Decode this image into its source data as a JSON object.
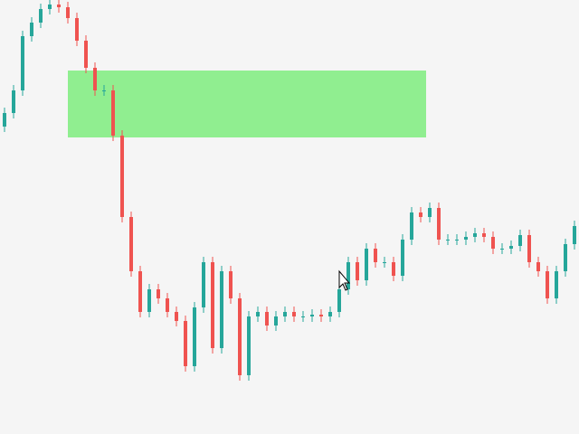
{
  "chart_data": {
    "type": "candlestick",
    "ylim": [
      0,
      480
    ],
    "up_color": "#26a69a",
    "down_color": "#ef5350",
    "zone": [
      328,
      402
    ],
    "zone_color": "#90ee90",
    "open": [
      340,
      355,
      380,
      440,
      455,
      470,
      475,
      472,
      460,
      435,
      405,
      380,
      380,
      330,
      240,
      180,
      135,
      160,
      150,
      135,
      125,
      75,
      140,
      190,
      95,
      180,
      150,
      65,
      130,
      135,
      120,
      130,
      135,
      130,
      130,
      132,
      130,
      135,
      160,
      190,
      170,
      205,
      190,
      190,
      175,
      215,
      245,
      240,
      250,
      215,
      215,
      215,
      218,
      222,
      218,
      205,
      205,
      208,
      220,
      190,
      180,
      150,
      180,
      210
    ],
    "high": [
      361,
      386,
      446,
      461,
      476,
      481,
      481,
      478,
      466,
      441,
      411,
      386,
      386,
      336,
      246,
      186,
      166,
      166,
      156,
      141,
      131,
      146,
      196,
      196,
      186,
      186,
      156,
      136,
      141,
      141,
      136,
      141,
      141,
      136,
      138,
      138,
      141,
      166,
      196,
      196,
      211,
      211,
      196,
      196,
      221,
      251,
      251,
      256,
      256,
      221,
      221,
      224,
      228,
      228,
      224,
      211,
      214,
      226,
      226,
      196,
      186,
      186,
      216,
      236
    ],
    "low": [
      334,
      349,
      374,
      434,
      449,
      464,
      466,
      454,
      429,
      399,
      374,
      374,
      324,
      234,
      174,
      129,
      129,
      144,
      129,
      119,
      69,
      69,
      134,
      89,
      89,
      144,
      59,
      59,
      124,
      114,
      114,
      124,
      124,
      124,
      124,
      124,
      124,
      129,
      154,
      164,
      164,
      184,
      184,
      169,
      169,
      209,
      234,
      234,
      209,
      209,
      209,
      209,
      212,
      212,
      199,
      199,
      199,
      202,
      184,
      174,
      144,
      144,
      174,
      204
    ],
    "close": [
      355,
      380,
      440,
      455,
      470,
      475,
      472,
      460,
      435,
      405,
      380,
      380,
      330,
      240,
      180,
      135,
      160,
      150,
      135,
      125,
      75,
      140,
      190,
      95,
      180,
      150,
      65,
      130,
      135,
      120,
      130,
      135,
      130,
      130,
      132,
      130,
      135,
      160,
      190,
      170,
      205,
      190,
      190,
      175,
      215,
      245,
      240,
      250,
      215,
      215,
      215,
      218,
      222,
      218,
      205,
      205,
      208,
      220,
      190,
      180,
      150,
      180,
      210,
      230
    ]
  }
}
